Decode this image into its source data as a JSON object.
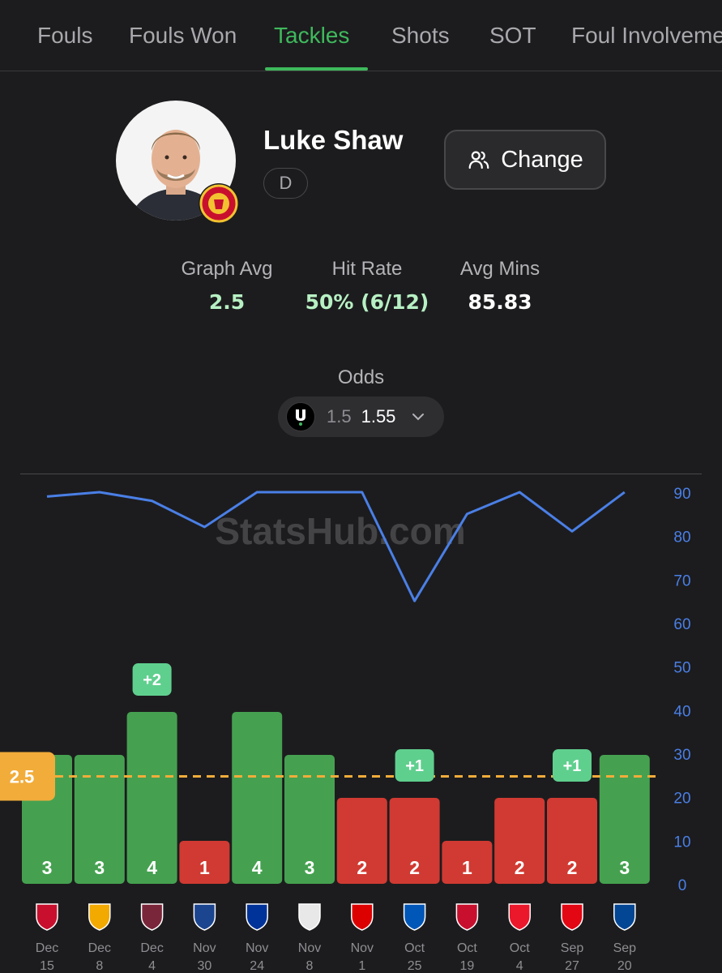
{
  "tabs": [
    {
      "label": "Fouls"
    },
    {
      "label": "Fouls Won"
    },
    {
      "label": "Tackles"
    },
    {
      "label": "Shots"
    },
    {
      "label": "SOT"
    },
    {
      "label": "Foul Involveme"
    }
  ],
  "active_tab": "Tackles",
  "accent_color": "#3fb95c",
  "player": {
    "name": "Luke Shaw",
    "position": "D",
    "club_badge_icon": "manchester-united-crest"
  },
  "change_button": {
    "label": "Change",
    "icon": "users-icon"
  },
  "stats": [
    {
      "label": "Graph Avg",
      "value": "2.5",
      "color": "#b7f0c3"
    },
    {
      "label": "Hit Rate",
      "value": "50% (6/12)",
      "color": "#b7f0c3"
    },
    {
      "label": "Avg Mins",
      "value": "85.83",
      "color": "#ffffff"
    }
  ],
  "odds": {
    "label": "Odds",
    "bookmaker_icon": "underdog-logo",
    "line": "1.5",
    "price": "1.55"
  },
  "watermark": "StatsHub.com",
  "chart_data": {
    "type": "bar",
    "line_value": 2.5,
    "line_label": "2.5",
    "categories": [
      {
        "month": "Dec",
        "day": "15",
        "opponent_icon": "bournemouth-crest"
      },
      {
        "month": "Dec",
        "day": "8",
        "opponent_icon": "wolves-crest"
      },
      {
        "month": "Dec",
        "day": "4",
        "opponent_icon": "west-ham-crest"
      },
      {
        "month": "Nov",
        "day": "30",
        "opponent_icon": "crystal-palace-crest"
      },
      {
        "month": "Nov",
        "day": "24",
        "opponent_icon": "everton-crest"
      },
      {
        "month": "Nov",
        "day": "8",
        "opponent_icon": "tottenham-crest"
      },
      {
        "month": "Nov",
        "day": "1",
        "opponent_icon": "nottingham-forest-crest"
      },
      {
        "month": "Oct",
        "day": "25",
        "opponent_icon": "brighton-crest"
      },
      {
        "month": "Oct",
        "day": "19",
        "opponent_icon": "liverpool-crest"
      },
      {
        "month": "Oct",
        "day": "4",
        "opponent_icon": "sunderland-crest"
      },
      {
        "month": "Sep",
        "day": "27",
        "opponent_icon": "brentford-crest"
      },
      {
        "month": "Sep",
        "day": "20",
        "opponent_icon": "chelsea-crest"
      }
    ],
    "series": [
      {
        "values": [
          3,
          3,
          4,
          1,
          4,
          3,
          2,
          2,
          1,
          2,
          2,
          3
        ],
        "y_max": 6
      },
      {
        "values": [
          89,
          90,
          88,
          82,
          90,
          90,
          90,
          65,
          85,
          90,
          81,
          90
        ]
      }
    ],
    "bonus_badges": [
      {
        "index": 2,
        "label": "+2"
      },
      {
        "index": 7,
        "label": "+1"
      },
      {
        "index": 10,
        "label": "+1"
      }
    ],
    "right_axis": {
      "min": 0,
      "max": 90,
      "ticks": [
        "0",
        "10",
        "20",
        "30",
        "40",
        "50",
        "60",
        "70",
        "80",
        "90"
      ]
    },
    "colors": {
      "over": "#45a150",
      "under": "#d03a32",
      "minutes_line": "#4a7fe6",
      "line_badge": "#f2ac3a",
      "bonus_badge": "#5fcf8e"
    }
  }
}
